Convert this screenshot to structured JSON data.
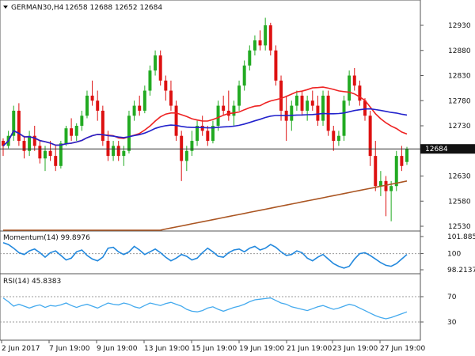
{
  "header": {
    "symbol_timeframe": "GERMAN30,H4",
    "ohlc": "12658 12688 12652 12684"
  },
  "indicators": {
    "momentum_label": "Momentum(14) 99.8976",
    "rsi_label": "RSI(14) 45.8383"
  },
  "price_axis": {
    "ticks": [
      "12930",
      "12880",
      "12830",
      "12780",
      "12730",
      "12630",
      "12580",
      "12530"
    ],
    "current_price": "12684"
  },
  "momentum_axis": {
    "ticks": [
      "101.8857",
      "100",
      "98.2137"
    ]
  },
  "rsi_axis": {
    "ticks": [
      "70",
      "30"
    ]
  },
  "time_axis": {
    "ticks": [
      "2 Jun 2017",
      "7 Jun 19:00",
      "9 Jun 19:00",
      "13 Jun 19:00",
      "15 Jun 19:00",
      "19 Jun 19:00",
      "21 Jun 19:00",
      "23 Jun 19:00",
      "27 Jun 19:00"
    ]
  },
  "colors": {
    "bull": "#22aa22",
    "bear": "#dd1111",
    "ma_fast": "#ee2222",
    "ma_mid": "#2222cc",
    "ma_slow": "#aa5522",
    "momentum": "#2288dd",
    "rsi": "#44aaee"
  },
  "chart_data": [
    {
      "type": "candlestick",
      "symbol": "GERMAN30",
      "timeframe": "H4",
      "ohlc_last": {
        "open": 12658,
        "high": 12688,
        "low": 12652,
        "close": 12684
      },
      "ylim": [
        12505,
        12955
      ],
      "yticks": [
        12530,
        12580,
        12630,
        12730,
        12780,
        12830,
        12880,
        12930
      ],
      "current_price": 12684,
      "candles": [
        [
          12700,
          12705,
          12670,
          12690
        ],
        [
          12690,
          12720,
          12685,
          12710
        ],
        [
          12710,
          12770,
          12700,
          12760
        ],
        [
          12760,
          12775,
          12690,
          12700
        ],
        [
          12700,
          12710,
          12665,
          12680
        ],
        [
          12680,
          12720,
          12670,
          12710
        ],
        [
          12710,
          12730,
          12680,
          12690
        ],
        [
          12690,
          12700,
          12655,
          12665
        ],
        [
          12665,
          12690,
          12640,
          12680
        ],
        [
          12680,
          12700,
          12660,
          12670
        ],
        [
          12670,
          12690,
          12640,
          12650
        ],
        [
          12650,
          12700,
          12645,
          12695
        ],
        [
          12695,
          12730,
          12690,
          12725
        ],
        [
          12725,
          12745,
          12700,
          12710
        ],
        [
          12710,
          12735,
          12700,
          12730
        ],
        [
          12730,
          12760,
          12720,
          12750
        ],
        [
          12750,
          12800,
          12745,
          12790
        ],
        [
          12790,
          12820,
          12770,
          12780
        ],
        [
          12780,
          12800,
          12740,
          12760
        ],
        [
          12760,
          12770,
          12690,
          12700
        ],
        [
          12700,
          12720,
          12660,
          12670
        ],
        [
          12670,
          12700,
          12660,
          12690
        ],
        [
          12690,
          12700,
          12660,
          12670
        ],
        [
          12670,
          12690,
          12650,
          12680
        ],
        [
          12680,
          12760,
          12675,
          12750
        ],
        [
          12750,
          12780,
          12740,
          12770
        ],
        [
          12770,
          12790,
          12750,
          12760
        ],
        [
          12760,
          12810,
          12755,
          12800
        ],
        [
          12800,
          12850,
          12790,
          12840
        ],
        [
          12840,
          12880,
          12830,
          12870
        ],
        [
          12870,
          12880,
          12810,
          12820
        ],
        [
          12820,
          12830,
          12780,
          12800
        ],
        [
          12800,
          12820,
          12760,
          12770
        ],
        [
          12770,
          12780,
          12700,
          12710
        ],
        [
          12710,
          12720,
          12620,
          12660
        ],
        [
          12660,
          12690,
          12640,
          12680
        ],
        [
          12680,
          12720,
          12670,
          12700
        ],
        [
          12700,
          12740,
          12690,
          12730
        ],
        [
          12730,
          12750,
          12710,
          12720
        ],
        [
          12720,
          12730,
          12690,
          12700
        ],
        [
          12700,
          12740,
          12695,
          12730
        ],
        [
          12730,
          12780,
          12720,
          12770
        ],
        [
          12770,
          12790,
          12750,
          12760
        ],
        [
          12760,
          12800,
          12740,
          12750
        ],
        [
          12750,
          12780,
          12730,
          12770
        ],
        [
          12770,
          12820,
          12760,
          12810
        ],
        [
          12810,
          12860,
          12800,
          12850
        ],
        [
          12850,
          12890,
          12840,
          12880
        ],
        [
          12880,
          12910,
          12870,
          12900
        ],
        [
          12900,
          12920,
          12880,
          12890
        ],
        [
          12890,
          12945,
          12880,
          12930
        ],
        [
          12930,
          12935,
          12870,
          12880
        ],
        [
          12880,
          12890,
          12810,
          12820
        ],
        [
          12820,
          12830,
          12740,
          12760
        ],
        [
          12760,
          12790,
          12700,
          12740
        ],
        [
          12740,
          12780,
          12720,
          12770
        ],
        [
          12770,
          12800,
          12760,
          12790
        ],
        [
          12790,
          12800,
          12750,
          12760
        ],
        [
          12760,
          12790,
          12740,
          12780
        ],
        [
          12780,
          12800,
          12760,
          12770
        ],
        [
          12770,
          12790,
          12730,
          12740
        ],
        [
          12740,
          12800,
          12730,
          12790
        ],
        [
          12790,
          12800,
          12710,
          12720
        ],
        [
          12720,
          12730,
          12680,
          12700
        ],
        [
          12700,
          12720,
          12690,
          12710
        ],
        [
          12710,
          12790,
          12700,
          12780
        ],
        [
          12780,
          12840,
          12770,
          12830
        ],
        [
          12830,
          12845,
          12800,
          12810
        ],
        [
          12810,
          12820,
          12770,
          12780
        ],
        [
          12780,
          12785,
          12740,
          12750
        ],
        [
          12750,
          12760,
          12650,
          12670
        ],
        [
          12670,
          12700,
          12600,
          12610
        ],
        [
          12610,
          12640,
          12590,
          12620
        ],
        [
          12620,
          12630,
          12550,
          12600
        ],
        [
          12600,
          12620,
          12540,
          12610
        ],
        [
          12610,
          12680,
          12600,
          12670
        ],
        [
          12670,
          12690,
          12640,
          12650
        ],
        [
          12658,
          12688,
          12652,
          12684
        ]
      ]
    },
    {
      "type": "line",
      "name": "Momentum(14)",
      "value": 99.8976,
      "ylim": [
        97.9,
        102.0
      ],
      "yticks": [
        98.2137,
        100,
        101.8857
      ],
      "values": [
        101.2,
        101.0,
        100.6,
        100.1,
        99.9,
        100.3,
        100.5,
        100.1,
        99.6,
        100.1,
        100.3,
        99.8,
        99.3,
        99.5,
        100.2,
        100.4,
        99.8,
        99.4,
        99.2,
        99.6,
        100.6,
        100.7,
        100.2,
        99.9,
        100.2,
        100.8,
        100.4,
        99.9,
        100.2,
        100.5,
        100.1,
        99.6,
        99.2,
        99.5,
        99.9,
        99.7,
        99.3,
        99.5,
        100.1,
        100.6,
        100.2,
        99.7,
        99.6,
        100.1,
        100.4,
        100.5,
        100.2,
        100.6,
        100.8,
        100.4,
        100.6,
        101.0,
        100.7,
        100.2,
        99.8,
        99.9,
        100.3,
        100.1,
        99.5,
        99.2,
        99.6,
        99.9,
        99.4,
        98.9,
        98.6,
        98.4,
        98.6,
        99.4,
        100.0,
        100.1,
        99.8,
        99.4,
        99.0,
        98.7,
        98.6,
        98.9,
        99.4,
        99.9
      ]
    },
    {
      "type": "line",
      "name": "RSI(14)",
      "value": 45.8383,
      "ylim": [
        0,
        100
      ],
      "yticks": [
        30,
        70
      ],
      "values": [
        68,
        62,
        55,
        58,
        55,
        52,
        55,
        57,
        53,
        56,
        55,
        57,
        60,
        56,
        53,
        56,
        58,
        55,
        52,
        56,
        60,
        58,
        57,
        60,
        58,
        54,
        52,
        56,
        60,
        58,
        56,
        59,
        61,
        58,
        55,
        50,
        47,
        46,
        48,
        52,
        54,
        50,
        47,
        50,
        53,
        55,
        58,
        62,
        65,
        66,
        67,
        68,
        64,
        60,
        58,
        54,
        52,
        50,
        48,
        51,
        54,
        56,
        53,
        50,
        52,
        55,
        58,
        56,
        52,
        48,
        44,
        40,
        37,
        35,
        37,
        40,
        43,
        46
      ]
    }
  ]
}
